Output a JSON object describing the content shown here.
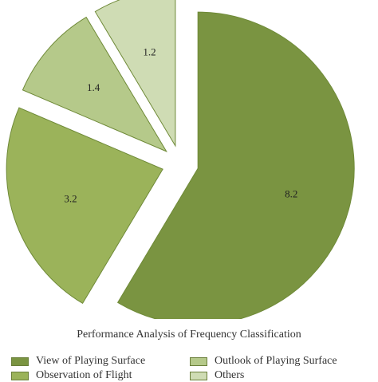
{
  "chart_data": {
    "type": "pie",
    "title": "Performance Analysis of Frequency Classification",
    "slices": [
      {
        "label": "View of Playing Surface",
        "value": 8.2,
        "display": "8.2",
        "color": "#7a9441"
      },
      {
        "label": "Observation of Flight",
        "value": 3.2,
        "display": "3.2",
        "color": "#9bb35a"
      },
      {
        "label": "Outlook of Playing Surface",
        "value": 1.4,
        "display": "1.4",
        "color": "#b5c98a"
      },
      {
        "label": "Others",
        "value": 1.2,
        "display": "1.2",
        "color": "#cfdcb4"
      }
    ],
    "legend_placement": "bottom"
  }
}
